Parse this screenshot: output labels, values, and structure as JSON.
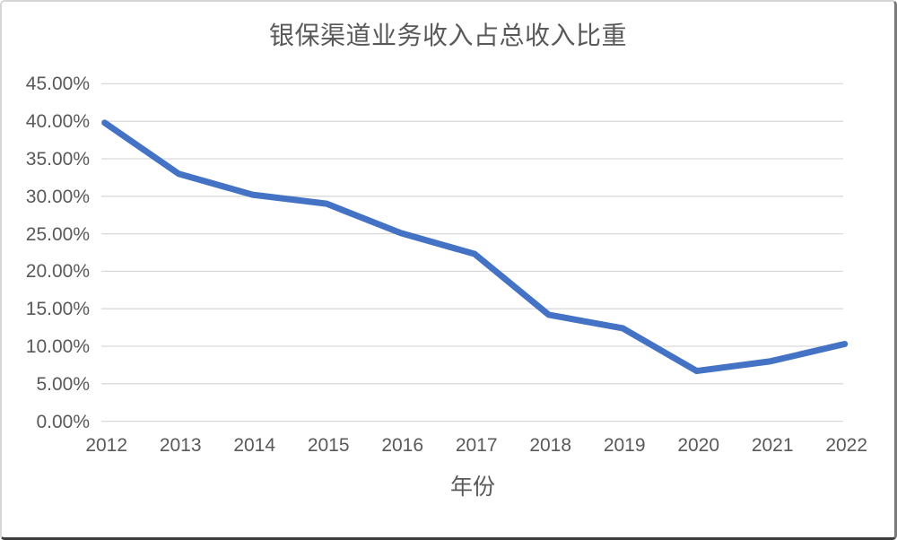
{
  "chart_data": {
    "type": "line",
    "title": "银保渠道业务收入占总收入比重",
    "xlabel": "年份",
    "ylabel": "",
    "categories": [
      "2012",
      "2013",
      "2014",
      "2015",
      "2016",
      "2017",
      "2018",
      "2019",
      "2020",
      "2021",
      "2022"
    ],
    "series": [
      {
        "name": "银保渠道业务收入占总收入比重",
        "values": [
          39.8,
          33.0,
          30.2,
          29.0,
          25.1,
          22.3,
          14.2,
          12.4,
          6.7,
          8.0,
          10.3
        ]
      }
    ],
    "ylim": [
      0,
      45
    ],
    "ytick_step": 5,
    "ytick_decimals": 2,
    "ytick_suffix": "%",
    "grid": true,
    "legend": "none",
    "colors": {
      "line": "#4472C4",
      "gridline": "#D9D9D9",
      "text": "#595959",
      "background": "#FFFFFF"
    }
  }
}
